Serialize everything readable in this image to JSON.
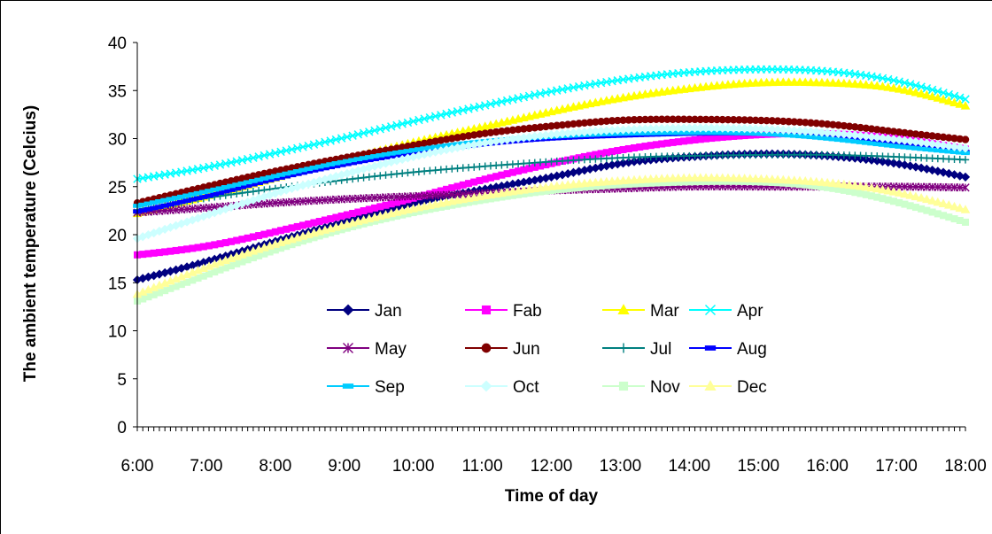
{
  "chart_data": {
    "type": "line",
    "xlabel": "Time of day",
    "ylabel": "The ambient temperature (Celcius)",
    "x_ticks": [
      "6:00",
      "7:00",
      "8:00",
      "9:00",
      "10:00",
      "11:00",
      "12:00",
      "13:00",
      "14:00",
      "15:00",
      "16:00",
      "17:00",
      "18:00"
    ],
    "x": [
      6,
      7,
      8,
      9,
      10,
      11,
      12,
      13,
      14,
      15,
      16,
      17,
      18
    ],
    "ylim": [
      0,
      40
    ],
    "y_ticks": [
      0,
      5,
      10,
      15,
      20,
      25,
      30,
      35,
      40
    ],
    "grid": false,
    "legend_position": "inside-lower-center",
    "series": [
      {
        "name": "Jan",
        "color": "#000080",
        "marker": "diamond",
        "values": [
          15.3,
          17.2,
          19.3,
          21.3,
          23.2,
          24.7,
          26.0,
          27.4,
          28.1,
          28.4,
          28.2,
          27.4,
          26.0
        ]
      },
      {
        "name": "Fab",
        "color": "#FF00FF",
        "marker": "square",
        "values": [
          17.9,
          18.8,
          20.3,
          22.0,
          23.8,
          25.7,
          27.4,
          28.8,
          29.8,
          30.4,
          30.5,
          30.0,
          28.9
        ]
      },
      {
        "name": "Mar",
        "color": "#FFFF00",
        "marker": "triangle",
        "values": [
          22.2,
          24.0,
          25.9,
          27.8,
          29.6,
          31.2,
          32.8,
          34.2,
          35.2,
          35.8,
          35.8,
          35.2,
          33.4
        ]
      },
      {
        "name": "Apr",
        "color": "#00FFFF",
        "marker": "x",
        "values": [
          25.8,
          27.0,
          28.5,
          30.1,
          31.8,
          33.4,
          34.9,
          36.1,
          36.9,
          37.2,
          37.0,
          36.0,
          34.1
        ]
      },
      {
        "name": "May",
        "color": "#800080",
        "marker": "star",
        "values": [
          22.3,
          22.8,
          23.3,
          23.7,
          24.0,
          24.3,
          24.6,
          24.8,
          25.0,
          25.0,
          25.0,
          25.0,
          24.9
        ]
      },
      {
        "name": "Jun",
        "color": "#800000",
        "marker": "circle",
        "values": [
          23.3,
          25.0,
          26.6,
          28.0,
          29.3,
          30.5,
          31.3,
          31.9,
          32.0,
          31.9,
          31.5,
          30.7,
          29.9
        ]
      },
      {
        "name": "Jul",
        "color": "#008080",
        "marker": "plus",
        "values": [
          22.6,
          23.8,
          24.8,
          25.7,
          26.5,
          27.1,
          27.6,
          28.0,
          28.2,
          28.3,
          28.3,
          28.1,
          27.8
        ]
      },
      {
        "name": "Aug",
        "color": "#0000FF",
        "marker": "dash",
        "values": [
          22.4,
          24.0,
          25.8,
          27.3,
          28.5,
          29.4,
          30.0,
          30.3,
          30.5,
          30.5,
          30.2,
          29.6,
          28.6
        ]
      },
      {
        "name": "Sep",
        "color": "#00CCFF",
        "marker": "dash",
        "values": [
          23.0,
          24.5,
          26.1,
          27.6,
          28.8,
          29.7,
          30.2,
          30.5,
          30.6,
          30.5,
          30.0,
          29.2,
          28.5
        ]
      },
      {
        "name": "Oct",
        "color": "#CCFFFF",
        "marker": "diamond",
        "values": [
          19.6,
          22.0,
          24.3,
          26.3,
          28.1,
          29.5,
          30.4,
          30.9,
          31.1,
          31.0,
          30.6,
          29.9,
          29.0
        ]
      },
      {
        "name": "Nov",
        "color": "#CCFFCC",
        "marker": "square",
        "values": [
          13.1,
          15.8,
          18.4,
          20.6,
          22.3,
          23.6,
          24.6,
          25.2,
          25.5,
          25.5,
          24.9,
          23.4,
          21.3
        ]
      },
      {
        "name": "Dec",
        "color": "#FFFF99",
        "marker": "triangle",
        "values": [
          13.8,
          16.6,
          19.0,
          21.0,
          22.7,
          24.0,
          25.0,
          25.6,
          25.9,
          25.8,
          25.4,
          24.4,
          22.6
        ]
      }
    ]
  }
}
